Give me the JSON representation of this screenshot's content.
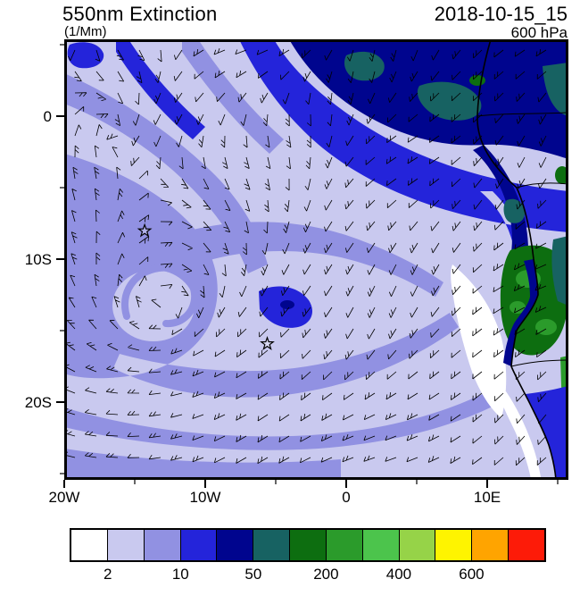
{
  "header": {
    "title": "550nm Extinction",
    "units": "(1/Mm)",
    "datetime": "2018-10-15_15",
    "level": "600 hPa"
  },
  "map": {
    "y_tick_labels": [
      "0",
      "10S",
      "20S"
    ],
    "x_tick_labels": [
      "20W",
      "10W",
      "0",
      "10E"
    ]
  },
  "palette": {
    "white": "#ffffff",
    "lavender": "#c9c9ef",
    "purple": "#9191e2",
    "blue": "#2424da",
    "navy": "#00058e",
    "teal": "#176262",
    "dark_green": "#0d6e10",
    "green": "#2b9b2b",
    "frame": "#000000"
  },
  "colorbar": {
    "colors": [
      "#ffffff",
      "#c9c9ef",
      "#9191e2",
      "#2424da",
      "#00058e",
      "#176262",
      "#0d6e10",
      "#2b9b2b",
      "#4cc44c",
      "#96d348",
      "#fef400",
      "#ffa400",
      "#fd1b08"
    ],
    "tick_labels": [
      "2",
      "10",
      "50",
      "200",
      "400",
      "600"
    ]
  },
  "chart_data": {
    "type": "heatmap",
    "title": "550nm Extinction",
    "units": "1/Mm",
    "timestamp": "2018-10-15_15",
    "level": "600 hPa",
    "region": "tropical South Atlantic and southwest Africa",
    "lon_range": [
      -20,
      15.6
    ],
    "lat_range": [
      -25.4,
      5.4
    ],
    "x_ticks": [
      "20W",
      "10W",
      "0",
      "10E"
    ],
    "y_ticks": [
      "0",
      "10S",
      "20S"
    ],
    "contour_levels_labeled": [
      2,
      10,
      50,
      200,
      400,
      600
    ],
    "n_color_bins": 13,
    "overlay": "wind barbs at 600 hPa",
    "markers": [
      {
        "symbol": "star",
        "lon": -14.3,
        "lat": -8.0
      },
      {
        "symbol": "star",
        "lon": -5.6,
        "lat": -15.9
      }
    ],
    "features": [
      "high extinction plume (200-600, navy and dark teal) over the Gulf of Guinea and Congo basin in the northeast",
      "moderate band (10-50, periwinkle/blue) spiraling around a cyclonic eddy near 14W 10S",
      "clean slot (<2, white) hugging the Angola/Namibia coast near 10-13E, 12-19S",
      "green bins (200-400 range colors) over the Angolan plateau land area",
      "background marine values 2-10 (pale lavender) across the central South Atlantic"
    ]
  }
}
